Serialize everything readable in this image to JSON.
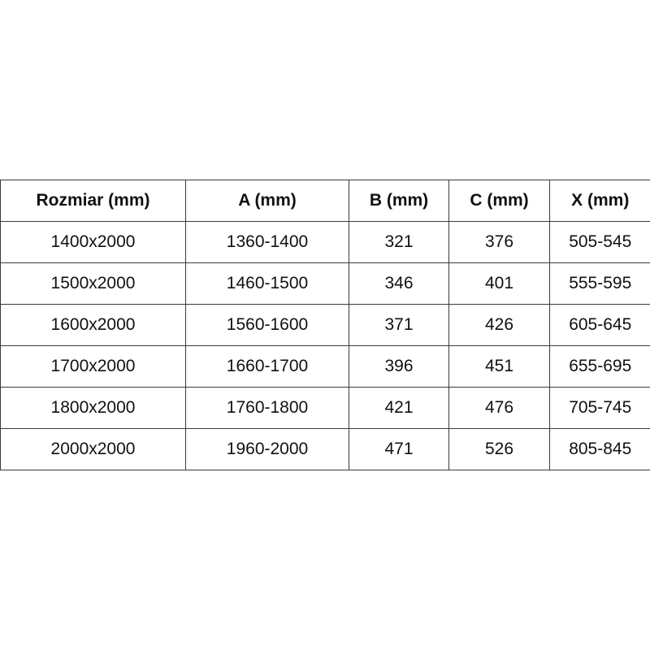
{
  "table": {
    "headers": [
      "Rozmiar (mm)",
      "A (mm)",
      "B (mm)",
      "C (mm)",
      "X (mm)"
    ],
    "rows": [
      [
        "1400x2000",
        "1360-1400",
        "321",
        "376",
        "505-545"
      ],
      [
        "1500x2000",
        "1460-1500",
        "346",
        "401",
        "555-595"
      ],
      [
        "1600x2000",
        "1560-1600",
        "371",
        "426",
        "605-645"
      ],
      [
        "1700x2000",
        "1660-1700",
        "396",
        "451",
        "655-695"
      ],
      [
        "1800x2000",
        "1760-1800",
        "421",
        "476",
        "705-745"
      ],
      [
        "2000x2000",
        "1960-2000",
        "471",
        "526",
        "805-845"
      ]
    ]
  }
}
